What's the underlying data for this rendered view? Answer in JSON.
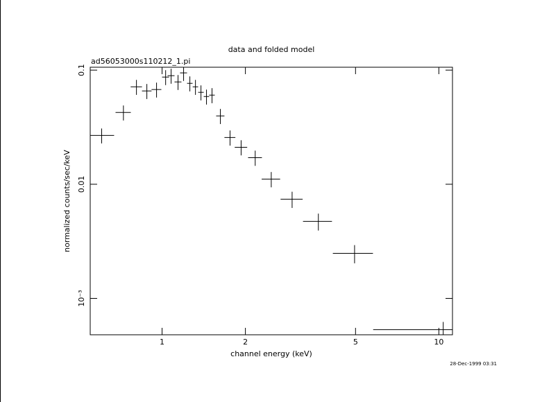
{
  "chart_data": {
    "type": "scatter",
    "title": "data and folded model",
    "subtitle": "ad56053000s110212_1.pi",
    "x_label": "channel energy (keV)",
    "y_label": "normalized counts/sec/keV",
    "timestamp": "28-Dec-1999 03:31",
    "log_x": true,
    "log_y": true,
    "color": "#000000",
    "xlim": [
      0.55,
      11.2
    ],
    "ylim": [
      0.00048,
      0.106
    ],
    "xticks": [
      1,
      2,
      5,
      10
    ],
    "yticks": [
      0.1,
      0.01,
      {
        "value": 0.001,
        "label": "10⁻³"
      }
    ],
    "x": [
      0.605,
      0.725,
      0.808,
      0.881,
      0.955,
      1.03,
      1.078,
      1.142,
      1.196,
      1.26,
      1.32,
      1.382,
      1.447,
      1.515,
      1.624,
      1.76,
      1.93,
      2.17,
      2.48,
      2.95,
      3.67,
      4.96,
      10.37
    ],
    "xerr": [
      0.066,
      0.046,
      0.038,
      0.035,
      0.039,
      0.03,
      0.031,
      0.033,
      0.035,
      0.029,
      0.03,
      0.032,
      0.033,
      0.035,
      0.056,
      0.08,
      0.1,
      0.125,
      0.19,
      0.27,
      0.44,
      0.82,
      4.58
    ],
    "y": [
      0.0268,
      0.0426,
      0.0714,
      0.0657,
      0.0676,
      0.0869,
      0.0894,
      0.0788,
      0.0946,
      0.0766,
      0.0714,
      0.0639,
      0.0587,
      0.0604,
      0.0397,
      0.0257,
      0.0211,
      0.0171,
      0.0111,
      0.0074,
      0.00473,
      0.00248,
      0.000532
    ],
    "yerr": [
      0.004,
      0.0064,
      0.0107,
      0.0099,
      0.0101,
      0.013,
      0.0134,
      0.0118,
      0.0142,
      0.0115,
      0.0107,
      0.0096,
      0.0088,
      0.0091,
      0.006,
      0.0039,
      0.0032,
      0.0026,
      0.0017,
      0.0012,
      0.0008,
      0.00045,
      9e-05
    ]
  }
}
